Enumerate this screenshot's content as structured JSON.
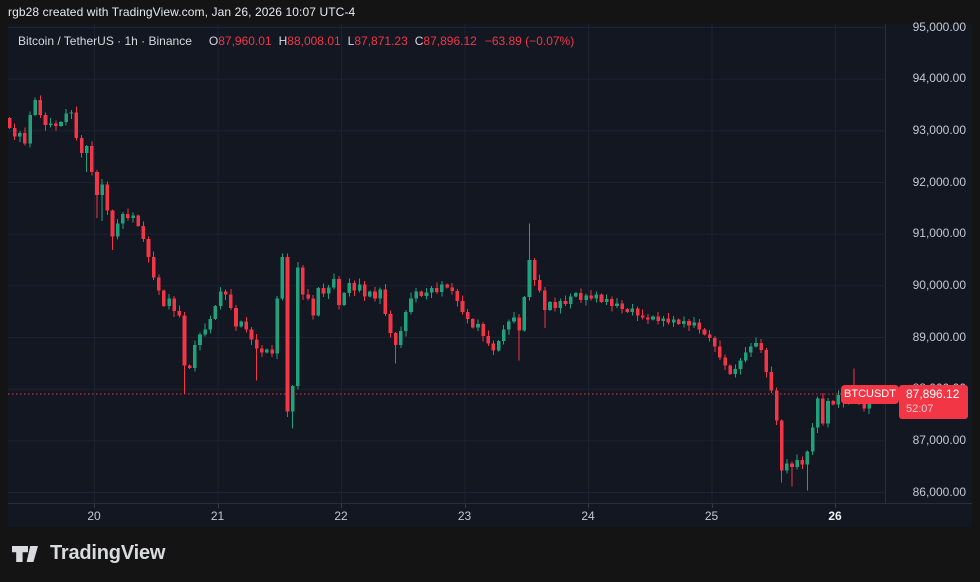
{
  "header": {
    "caption": "rgb28 created with TradingView.com, Jan 26, 2026 10:07 UTC-4"
  },
  "legend": {
    "symbol": "Bitcoin / TetherUS",
    "interval": "1h",
    "exchange": "Binance",
    "separator": "·",
    "ohlc": [
      {
        "label": "O",
        "value": "87,960.01"
      },
      {
        "label": "H",
        "value": "88,008.01"
      },
      {
        "label": "L",
        "value": "87,871.23"
      },
      {
        "label": "C",
        "value": "87,896.12"
      }
    ],
    "change": "−63.89 (−0.07%)"
  },
  "price_label": {
    "symbol_badge": "BTCUSDT",
    "price": "87,896.12",
    "countdown": "52:07"
  },
  "x_axis": {
    "labels": [
      "20",
      "21",
      "22",
      "23",
      "24",
      "25",
      "26"
    ],
    "current": "26"
  },
  "logo": {
    "text": "TradingView"
  },
  "colors": {
    "up": "#20a17c",
    "down": "#f23645",
    "bg": "#131722",
    "outer": "#141414",
    "border": "#2a2e39",
    "grid": "#1d2231",
    "axis_text": "#c4c8d2",
    "legend_text": "#d5d8de",
    "caption_text": "#e8eaed",
    "price_line": "#f23645"
  },
  "chart_data": {
    "type": "candlestick",
    "title": "Bitcoin / TetherUS",
    "exchange": "Binance",
    "interval": "1h",
    "x_axis_days": [
      "20",
      "21",
      "22",
      "23",
      "24",
      "25",
      "26"
    ],
    "y_ticks": [
      95000,
      94000,
      93000,
      92000,
      91000,
      90000,
      89000,
      88000,
      87000,
      86000
    ],
    "grid": true,
    "first_open": 93240,
    "closes": [
      93050,
      92880,
      92950,
      92750,
      93300,
      93590,
      93300,
      93100,
      93130,
      93080,
      93160,
      93330,
      93350,
      92850,
      92560,
      92700,
      92190,
      91750,
      91950,
      91450,
      90950,
      91200,
      91380,
      91300,
      91350,
      91150,
      90900,
      90550,
      90150,
      89900,
      89600,
      89750,
      89500,
      89420,
      88450,
      88400,
      88850,
      89050,
      89150,
      89350,
      89600,
      89880,
      89820,
      89560,
      89200,
      89300,
      89150,
      88950,
      88780,
      88700,
      88760,
      88680,
      89750,
      90550,
      87560,
      88050,
      90350,
      89820,
      89750,
      89420,
      89950,
      89840,
      89960,
      90120,
      89620,
      89850,
      90050,
      89900,
      90020,
      89780,
      89880,
      89750,
      89920,
      89450,
      89080,
      88850,
      89120,
      89480,
      89750,
      89880,
      89790,
      89860,
      89950,
      89870,
      90020,
      89960,
      89890,
      89700,
      89480,
      89350,
      89180,
      89250,
      89020,
      88870,
      88740,
      88920,
      89150,
      89300,
      89380,
      89130,
      89770,
      90490,
      90100,
      89900,
      89520,
      89680,
      89560,
      89700,
      89640,
      89780,
      89850,
      89720,
      89800,
      89750,
      89820,
      89680,
      89740,
      89600,
      89650,
      89540,
      89480,
      89550,
      89420,
      89380,
      89340,
      89400,
      89310,
      89360,
      89280,
      89340,
      89250,
      89310,
      89220,
      89280,
      89150,
      89050,
      88980,
      88820,
      88600,
      88450,
      88280,
      88380,
      88550,
      88700,
      88820,
      88880,
      88750,
      88320,
      87960,
      87380,
      86420,
      86550,
      86480,
      86620,
      86530,
      86780,
      87250,
      87810,
      87330,
      87760,
      87690,
      87880,
      87740,
      87910,
      87830,
      87700,
      87620,
      87780,
      87960.01,
      87896.12
    ],
    "wick_overrides": {
      "5": {
        "high": 93640
      },
      "15": {
        "low": 92190
      },
      "17": {
        "low": 91300
      },
      "18": {
        "low": 91250
      },
      "20": {
        "low": 90680
      },
      "34": {
        "low": 87890
      },
      "48": {
        "low": 88160
      },
      "53": {
        "high": 90620
      },
      "54": {
        "low": 87450
      },
      "55": {
        "low": 87230
      },
      "56": {
        "high": 90450
      },
      "75": {
        "low": 88490
      },
      "99": {
        "low": 88550
      },
      "101": {
        "high": 91200
      },
      "104": {
        "low": 89170
      },
      "145": {
        "high": 88990
      },
      "150": {
        "low": 86180
      },
      "152": {
        "low": 86105
      },
      "155": {
        "low": 86030
      },
      "164": {
        "high": 88390
      },
      "169": {
        "high": 88008.01,
        "low": 87871.23
      }
    },
    "last_candle": {
      "open": 87960.01,
      "high": 88008.01,
      "low": 87871.23,
      "close": 87896.12
    },
    "last_close": 87896.12
  }
}
